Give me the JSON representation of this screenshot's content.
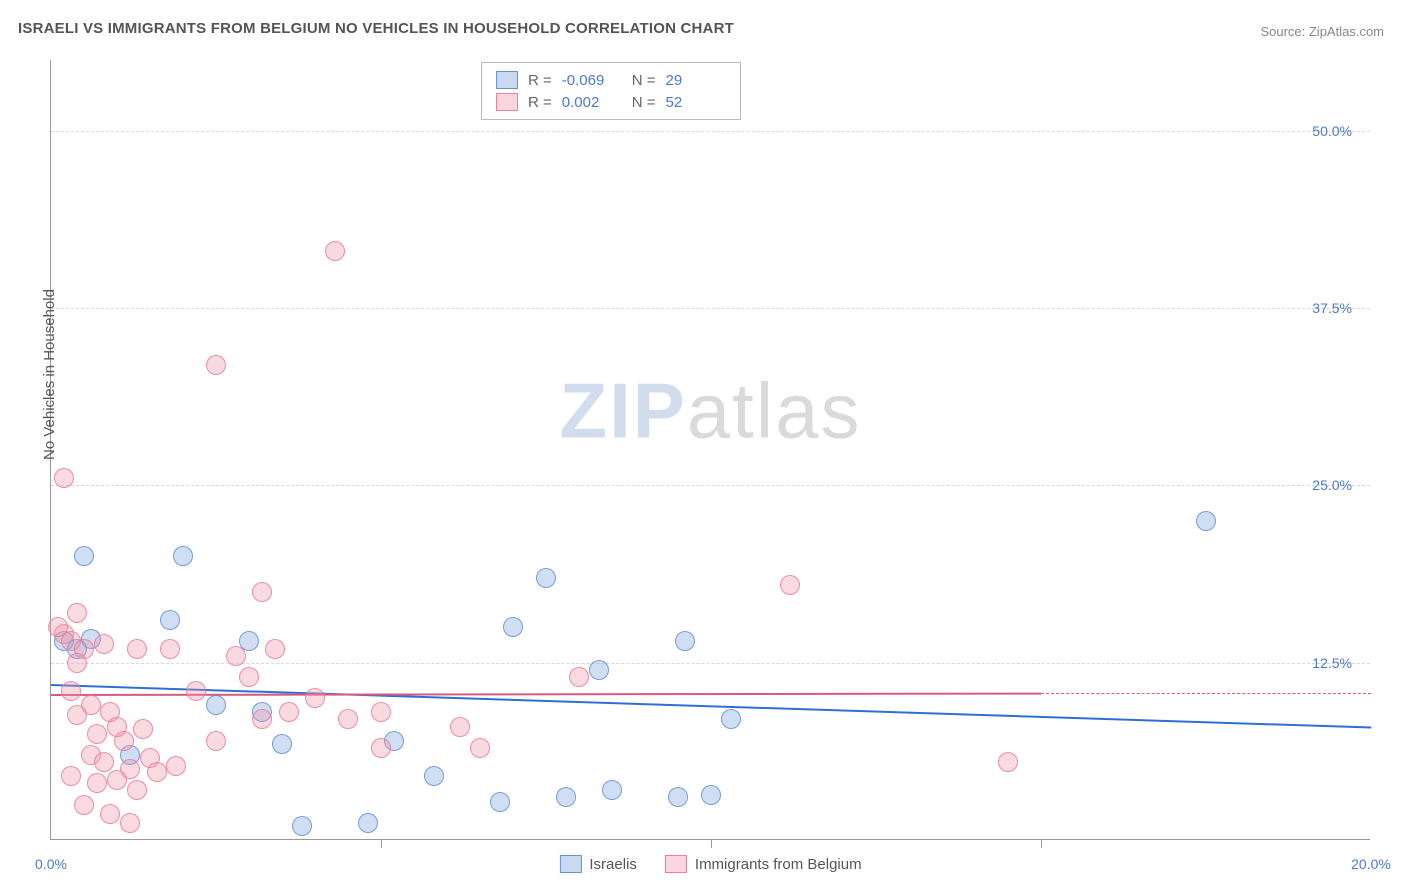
{
  "title": "ISRAELI VS IMMIGRANTS FROM BELGIUM NO VEHICLES IN HOUSEHOLD CORRELATION CHART",
  "source": "Source: ZipAtlas.com",
  "ylabel": "No Vehicles in Household",
  "watermark": {
    "part1": "ZIP",
    "part2": "atlas"
  },
  "chart": {
    "type": "scatter",
    "xlim": [
      0,
      20
    ],
    "ylim": [
      0,
      55
    ],
    "xtick_labels": [
      "0.0%",
      "20.0%"
    ],
    "xtick_positions": [
      0,
      20
    ],
    "xtick_minor_positions": [
      5,
      10,
      15
    ],
    "ytick_labels": [
      "12.5%",
      "25.0%",
      "37.5%",
      "50.0%"
    ],
    "ytick_positions": [
      12.5,
      25,
      37.5,
      50
    ],
    "grid_color": "#d8d8d8",
    "background_color": "#ffffff",
    "axis_color": "#999999",
    "tick_font_color": "#4a7ac7",
    "marker_radius": 10,
    "series": [
      {
        "name": "Israelis",
        "color_fill": "rgba(120,160,220,0.35)",
        "color_stroke": "rgba(90,140,210,0.8)",
        "regression": {
          "x1": 0,
          "y1": 11.0,
          "x2": 20,
          "y2": 8.0,
          "color": "#2f6fd1",
          "width": 2
        },
        "R": "-0.069",
        "N": "29",
        "points": [
          [
            0.5,
            20.0
          ],
          [
            2.0,
            20.0
          ],
          [
            1.8,
            15.5
          ],
          [
            3.0,
            14.0
          ],
          [
            0.6,
            14.2
          ],
          [
            0.2,
            14.0
          ],
          [
            0.4,
            13.5
          ],
          [
            2.5,
            9.5
          ],
          [
            1.2,
            6.0
          ],
          [
            3.2,
            9.0
          ],
          [
            3.5,
            6.8
          ],
          [
            3.8,
            1.0
          ],
          [
            4.8,
            1.2
          ],
          [
            5.2,
            7.0
          ],
          [
            5.8,
            4.5
          ],
          [
            6.8,
            2.7
          ],
          [
            7.0,
            15.0
          ],
          [
            7.5,
            18.5
          ],
          [
            7.8,
            3.0
          ],
          [
            8.3,
            12.0
          ],
          [
            8.5,
            3.5
          ],
          [
            9.6,
            14.0
          ],
          [
            10.3,
            8.5
          ],
          [
            10.0,
            3.2
          ],
          [
            9.5,
            3.0
          ],
          [
            17.5,
            22.5
          ]
        ]
      },
      {
        "name": "Immigrants from Belgium",
        "color_fill": "rgba(240,150,170,0.35)",
        "color_stroke": "rgba(230,120,150,0.8)",
        "regression": {
          "x1": 0,
          "y1": 10.3,
          "x2": 15,
          "y2": 10.4,
          "color": "#d65a82",
          "width": 2,
          "dashed_ext": {
            "x2": 20,
            "y2": 10.4
          }
        },
        "R": "0.002",
        "N": "52",
        "points": [
          [
            0.2,
            25.5
          ],
          [
            2.5,
            33.5
          ],
          [
            4.3,
            41.5
          ],
          [
            0.2,
            14.5
          ],
          [
            0.4,
            16.0
          ],
          [
            0.1,
            15.0
          ],
          [
            0.3,
            14.0
          ],
          [
            0.5,
            13.5
          ],
          [
            0.8,
            13.8
          ],
          [
            1.3,
            13.5
          ],
          [
            0.4,
            12.5
          ],
          [
            1.8,
            13.5
          ],
          [
            0.3,
            10.5
          ],
          [
            0.6,
            9.5
          ],
          [
            0.9,
            9.0
          ],
          [
            0.4,
            8.8
          ],
          [
            0.7,
            7.5
          ],
          [
            1.0,
            8.0
          ],
          [
            1.1,
            7.0
          ],
          [
            1.4,
            7.8
          ],
          [
            0.6,
            6.0
          ],
          [
            0.8,
            5.5
          ],
          [
            1.2,
            5.0
          ],
          [
            1.5,
            5.8
          ],
          [
            0.3,
            4.5
          ],
          [
            0.7,
            4.0
          ],
          [
            1.0,
            4.2
          ],
          [
            1.3,
            3.5
          ],
          [
            1.6,
            4.8
          ],
          [
            1.9,
            5.2
          ],
          [
            0.5,
            2.5
          ],
          [
            0.9,
            1.8
          ],
          [
            1.2,
            1.2
          ],
          [
            2.2,
            10.5
          ],
          [
            2.5,
            7.0
          ],
          [
            2.8,
            13.0
          ],
          [
            3.2,
            17.5
          ],
          [
            3.0,
            11.5
          ],
          [
            3.2,
            8.5
          ],
          [
            3.4,
            13.5
          ],
          [
            3.6,
            9.0
          ],
          [
            4.5,
            8.5
          ],
          [
            4.0,
            10.0
          ],
          [
            5.0,
            9.0
          ],
          [
            5.0,
            6.5
          ],
          [
            6.2,
            8.0
          ],
          [
            6.5,
            6.5
          ],
          [
            8.0,
            11.5
          ],
          [
            11.2,
            18.0
          ],
          [
            14.5,
            5.5
          ]
        ]
      }
    ]
  },
  "legend": {
    "items": [
      {
        "label": "Israelis",
        "swatch": "blue"
      },
      {
        "label": "Immigrants from Belgium",
        "swatch": "pink"
      }
    ]
  }
}
